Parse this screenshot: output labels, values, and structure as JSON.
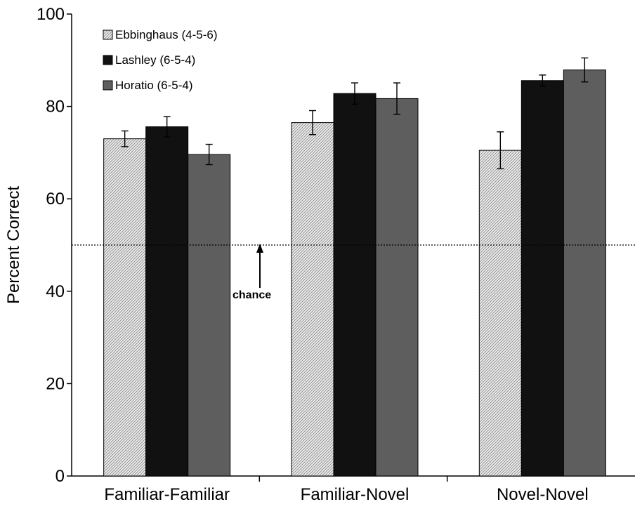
{
  "chart_data": {
    "type": "bar",
    "categories": [
      "Familiar-Familiar",
      "Familiar-Novel",
      "Novel-Novel"
    ],
    "series": [
      {
        "name": "Ebbinghaus (4-5-6)",
        "values": [
          73.0,
          76.5,
          70.5
        ],
        "errors": [
          1.7,
          2.6,
          4.0
        ],
        "color": "#d8d8d8",
        "pattern": "diagonal-hatch"
      },
      {
        "name": "Lashley (6-5-4)",
        "values": [
          75.6,
          82.8,
          85.6
        ],
        "errors": [
          2.2,
          2.3,
          1.2
        ],
        "color": "#111111",
        "pattern": "solid"
      },
      {
        "name": "Horatio (6-5-4)",
        "values": [
          69.6,
          81.7,
          87.9
        ],
        "errors": [
          2.2,
          3.4,
          2.6
        ],
        "color": "#5e5e5e",
        "pattern": "solid"
      }
    ],
    "ylabel": "Percent Correct",
    "ylim": [
      0,
      100
    ],
    "yticks": [
      0,
      20,
      40,
      60,
      80,
      100
    ],
    "grid": false,
    "legend_position": "top-left",
    "reference_line": {
      "value": 50,
      "label": "chance",
      "style": "dotted"
    }
  }
}
